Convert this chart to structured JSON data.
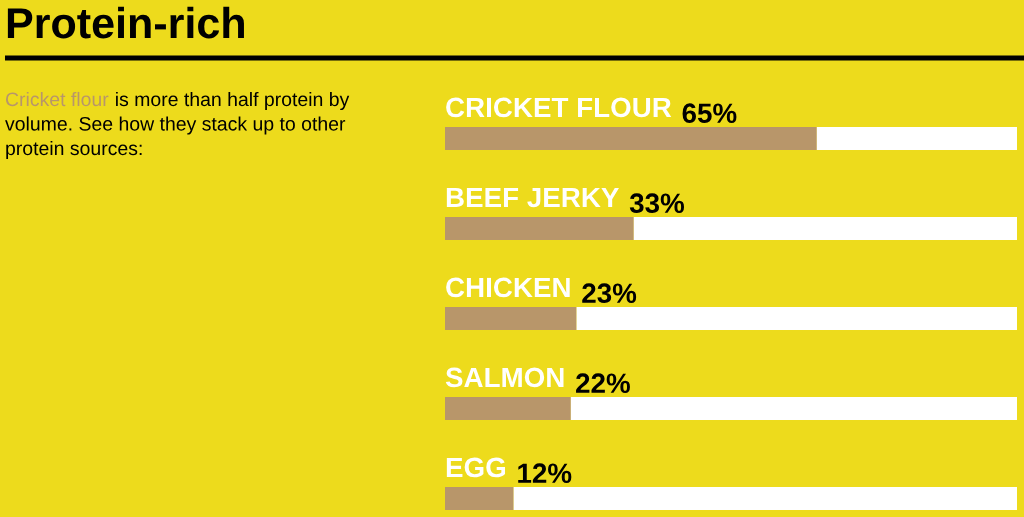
{
  "chart_data": {
    "type": "bar",
    "orientation": "horizontal",
    "stacked": true,
    "title": "Protein-rich",
    "subtitle": "Cricket flour is more than half protein by volume. See how they stack up to other protein sources:",
    "categories": [
      "CRICKET FLOUR",
      "BEEF JERKY",
      "CHICKEN",
      "SALMON",
      "EGG"
    ],
    "series": [
      {
        "color": "#b8966a",
        "values": [
          65,
          33,
          23,
          22,
          12
        ],
        "value_labels": [
          "65%",
          "33%",
          "23%",
          "22%",
          "12%"
        ]
      },
      {
        "color": "#ffffff",
        "values": [
          35,
          67,
          77,
          78,
          88
        ]
      }
    ],
    "xlim": [
      0,
      100
    ],
    "tick_labels": "y"
  }
}
